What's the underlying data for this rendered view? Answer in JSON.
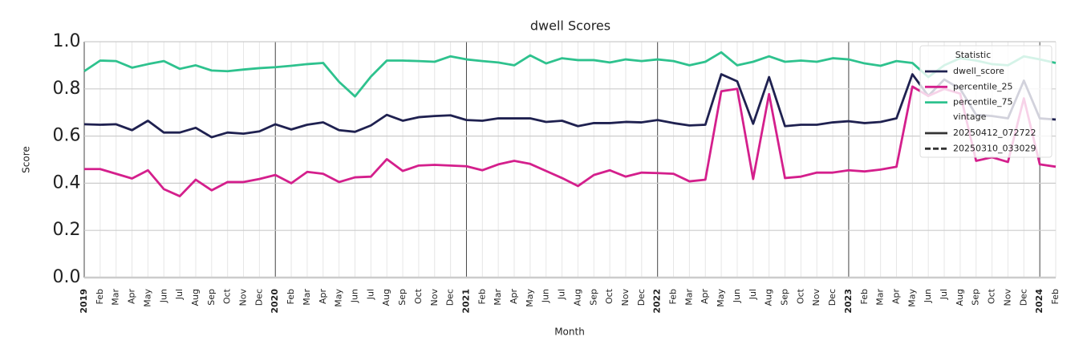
{
  "chart_data": {
    "type": "line",
    "title": "dwell Scores",
    "x_label": "Month",
    "y_label": "Score",
    "categories": [
      "2019",
      "Feb",
      "Mar",
      "Apr",
      "May",
      "Jun",
      "Jul",
      "Aug",
      "Sep",
      "Oct",
      "Nov",
      "Dec",
      "2020",
      "Feb",
      "Mar",
      "Apr",
      "May",
      "Jun",
      "Jul",
      "Aug",
      "Sep",
      "Oct",
      "Nov",
      "Dec",
      "2021",
      "Feb",
      "Mar",
      "Apr",
      "May",
      "Jun",
      "Jul",
      "Aug",
      "Sep",
      "Oct",
      "Nov",
      "Dec",
      "2022",
      "Feb",
      "Mar",
      "Apr",
      "May",
      "Jun",
      "Jul",
      "Aug",
      "Sep",
      "Oct",
      "Nov",
      "Dec",
      "2023",
      "Feb",
      "Mar",
      "Apr",
      "May",
      "Jun",
      "Jul",
      "Aug",
      "Sep",
      "Oct",
      "Nov",
      "Dec",
      "2024",
      "Feb"
    ],
    "series": [
      {
        "name": "dwell_score",
        "color": "#1f2150",
        "values": [
          0.65,
          0.648,
          0.65,
          0.625,
          0.665,
          0.615,
          0.615,
          0.635,
          0.595,
          0.615,
          0.61,
          0.62,
          0.65,
          0.628,
          0.648,
          0.658,
          0.625,
          0.618,
          0.645,
          0.69,
          0.665,
          0.68,
          0.685,
          0.688,
          0.668,
          0.665,
          0.675,
          0.675,
          0.675,
          0.66,
          0.665,
          0.642,
          0.655,
          0.655,
          0.66,
          0.658,
          0.668,
          0.655,
          0.645,
          0.648,
          0.862,
          0.832,
          0.652,
          0.85,
          0.642,
          0.648,
          0.648,
          0.658,
          0.663,
          0.655,
          0.66,
          0.675,
          0.862,
          0.77,
          0.84,
          0.8,
          0.69,
          0.685,
          0.675,
          0.835,
          0.675,
          0.67
        ]
      },
      {
        "name": "percentile_25",
        "color": "#d41f8c",
        "values": [
          0.46,
          0.46,
          0.44,
          0.42,
          0.455,
          0.375,
          0.345,
          0.415,
          0.37,
          0.405,
          0.405,
          0.418,
          0.435,
          0.4,
          0.448,
          0.44,
          0.405,
          0.425,
          0.428,
          0.502,
          0.452,
          0.475,
          0.478,
          0.475,
          0.472,
          0.455,
          0.48,
          0.495,
          0.482,
          0.452,
          0.422,
          0.388,
          0.435,
          0.455,
          0.428,
          0.445,
          0.443,
          0.44,
          0.408,
          0.415,
          0.79,
          0.8,
          0.418,
          0.778,
          0.422,
          0.428,
          0.445,
          0.445,
          0.455,
          0.45,
          0.458,
          0.47,
          0.81,
          0.77,
          0.8,
          0.78,
          0.495,
          0.51,
          0.49,
          0.76,
          0.48,
          0.47
        ]
      },
      {
        "name": "percentile_75",
        "color": "#2ec28e",
        "values": [
          0.875,
          0.92,
          0.918,
          0.89,
          0.905,
          0.918,
          0.885,
          0.9,
          0.878,
          0.875,
          0.882,
          0.888,
          0.892,
          0.898,
          0.905,
          0.91,
          0.83,
          0.768,
          0.852,
          0.92,
          0.92,
          0.918,
          0.915,
          0.938,
          0.925,
          0.918,
          0.912,
          0.9,
          0.942,
          0.908,
          0.93,
          0.922,
          0.922,
          0.912,
          0.925,
          0.918,
          0.925,
          0.918,
          0.9,
          0.915,
          0.955,
          0.9,
          0.915,
          0.938,
          0.915,
          0.92,
          0.915,
          0.93,
          0.925,
          0.908,
          0.898,
          0.918,
          0.91,
          0.85,
          0.9,
          0.93,
          0.92,
          0.905,
          0.9,
          0.938,
          0.925,
          0.91
        ]
      }
    ],
    "ylim": [
      0,
      1
    ],
    "yticks": [
      {
        "value": 0,
        "label": "0.0"
      },
      0.2,
      0.4,
      0.6,
      0.8,
      {
        "value": 1,
        "label": "1.0"
      }
    ],
    "grid": true,
    "legend": {
      "title": "Statistic",
      "position": "upper right",
      "vintage_title": "vintage",
      "vintages": [
        {
          "name": "20250412_072722",
          "style": "solid"
        },
        {
          "name": "20250310_033029",
          "style": "dashed"
        }
      ]
    }
  }
}
